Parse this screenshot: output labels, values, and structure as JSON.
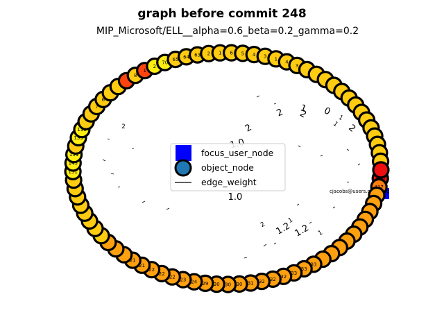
{
  "title": "graph before commit 248",
  "subtitle": "MIP_Microsoft/ELL__alpha=0.6_beta=0.2_gamma=0.2",
  "legend": {
    "items": [
      {
        "label": "focus_user_node",
        "marker": "square",
        "color": "#0000ff"
      },
      {
        "label": "object_node",
        "marker": "circle",
        "color": "#1f77b4"
      },
      {
        "label": "edge_weight",
        "marker": "line",
        "color": "#000000"
      }
    ]
  },
  "focus_user": {
    "label": "cjacobs@users.noreply.g",
    "color": "#0000ff"
  },
  "node_style": {
    "edge_color": "#000000",
    "colors": {
      "yellow": "#ffee11",
      "gold": "#ffcc11",
      "amber": "#ffa010",
      "orange": "#ff7d10",
      "red_orange": "#ff4410",
      "red": "#ee1010"
    }
  },
  "nodes": [
    {
      "id": "426",
      "color": "red"
    },
    {
      "id": "417",
      "color": "orange"
    },
    {
      "id": "",
      "color": "amber"
    },
    {
      "id": "",
      "color": "amber"
    },
    {
      "id": "",
      "color": "amber"
    },
    {
      "id": "",
      "color": "amber"
    },
    {
      "id": "",
      "color": "amber"
    },
    {
      "id": "",
      "color": "amber"
    },
    {
      "id": "",
      "color": "amber"
    },
    {
      "id": "",
      "color": "amber"
    },
    {
      "id": "",
      "color": "amber"
    },
    {
      "id": "",
      "color": "amber"
    },
    {
      "id": "33",
      "color": "amber"
    },
    {
      "id": "33",
      "color": "amber"
    },
    {
      "id": "33",
      "color": "amber"
    },
    {
      "id": "32",
      "color": "amber"
    },
    {
      "id": "32",
      "color": "amber"
    },
    {
      "id": "32",
      "color": "amber"
    },
    {
      "id": "31",
      "color": "amber"
    },
    {
      "id": "30",
      "color": "amber"
    },
    {
      "id": "30",
      "color": "amber"
    },
    {
      "id": "30",
      "color": "amber"
    },
    {
      "id": "29",
      "color": "amber"
    },
    {
      "id": "24",
      "color": "amber"
    },
    {
      "id": "23",
      "color": "amber"
    },
    {
      "id": "22",
      "color": "amber"
    },
    {
      "id": "22",
      "color": "amber"
    },
    {
      "id": "22",
      "color": "amber"
    },
    {
      "id": "21",
      "color": "amber"
    },
    {
      "id": "21",
      "color": "amber"
    },
    {
      "id": "",
      "color": "amber"
    },
    {
      "id": "",
      "color": "amber"
    },
    {
      "id": "",
      "color": "amber"
    },
    {
      "id": "",
      "color": "gold"
    },
    {
      "id": "",
      "color": "gold"
    },
    {
      "id": "",
      "color": "gold"
    },
    {
      "id": "",
      "color": "gold"
    },
    {
      "id": "",
      "color": "gold"
    },
    {
      "id": "",
      "color": "gold"
    },
    {
      "id": "",
      "color": "gold"
    },
    {
      "id": "",
      "color": "gold"
    },
    {
      "id": "151",
      "color": "yellow"
    },
    {
      "id": "145",
      "color": "yellow"
    },
    {
      "id": "131",
      "color": "yellow"
    },
    {
      "id": "",
      "color": "gold"
    },
    {
      "id": "133",
      "color": "yellow"
    },
    {
      "id": "119",
      "color": "yellow"
    },
    {
      "id": "",
      "color": "gold"
    },
    {
      "id": "",
      "color": "gold"
    },
    {
      "id": "7",
      "color": "gold"
    },
    {
      "id": "6",
      "color": "gold"
    },
    {
      "id": "",
      "color": "gold"
    },
    {
      "id": "",
      "color": "gold"
    },
    {
      "id": "",
      "color": "red_orange"
    },
    {
      "id": "8",
      "color": "gold"
    },
    {
      "id": "1",
      "color": "red_orange"
    },
    {
      "id": "2",
      "color": "yellow"
    },
    {
      "id": "70",
      "color": "yellow"
    },
    {
      "id": "65",
      "color": "gold"
    },
    {
      "id": "64",
      "color": "gold"
    },
    {
      "id": "63",
      "color": "gold"
    },
    {
      "id": "2",
      "color": "gold"
    },
    {
      "id": "1",
      "color": "gold"
    },
    {
      "id": "6",
      "color": "gold"
    },
    {
      "id": "5",
      "color": "gold"
    },
    {
      "id": "4",
      "color": "gold"
    },
    {
      "id": "3",
      "color": "gold"
    },
    {
      "id": "1",
      "color": "gold"
    },
    {
      "id": "4",
      "color": "gold"
    },
    {
      "id": "3",
      "color": "gold"
    },
    {
      "id": "",
      "color": "gold"
    },
    {
      "id": "",
      "color": "gold"
    },
    {
      "id": "",
      "color": "gold"
    },
    {
      "id": "",
      "color": "gold"
    },
    {
      "id": "",
      "color": "gold"
    },
    {
      "id": "",
      "color": "gold"
    },
    {
      "id": "",
      "color": "gold"
    },
    {
      "id": "",
      "color": "gold"
    },
    {
      "id": "",
      "color": "gold"
    },
    {
      "id": "",
      "color": "gold"
    },
    {
      "id": "",
      "color": "gold"
    },
    {
      "id": "",
      "color": "gold"
    },
    {
      "id": "",
      "color": "gold"
    },
    {
      "id": "",
      "color": "gold"
    },
    {
      "id": "",
      "color": "red"
    }
  ],
  "edge_labels": [
    {
      "text": "1.0"
    },
    {
      "text": "1.0"
    },
    {
      "text": "2"
    },
    {
      "text": "2"
    },
    {
      "text": "1"
    },
    {
      "text": "0"
    },
    {
      "text": "2"
    },
    {
      "text": "2"
    },
    {
      "text": "1.2"
    },
    {
      "text": "1.2"
    },
    {
      "text": "1"
    },
    {
      "text": "2"
    },
    {
      "text": "1"
    },
    {
      "text": "1"
    },
    {
      "text": "2"
    },
    {
      "text": "1"
    }
  ]
}
